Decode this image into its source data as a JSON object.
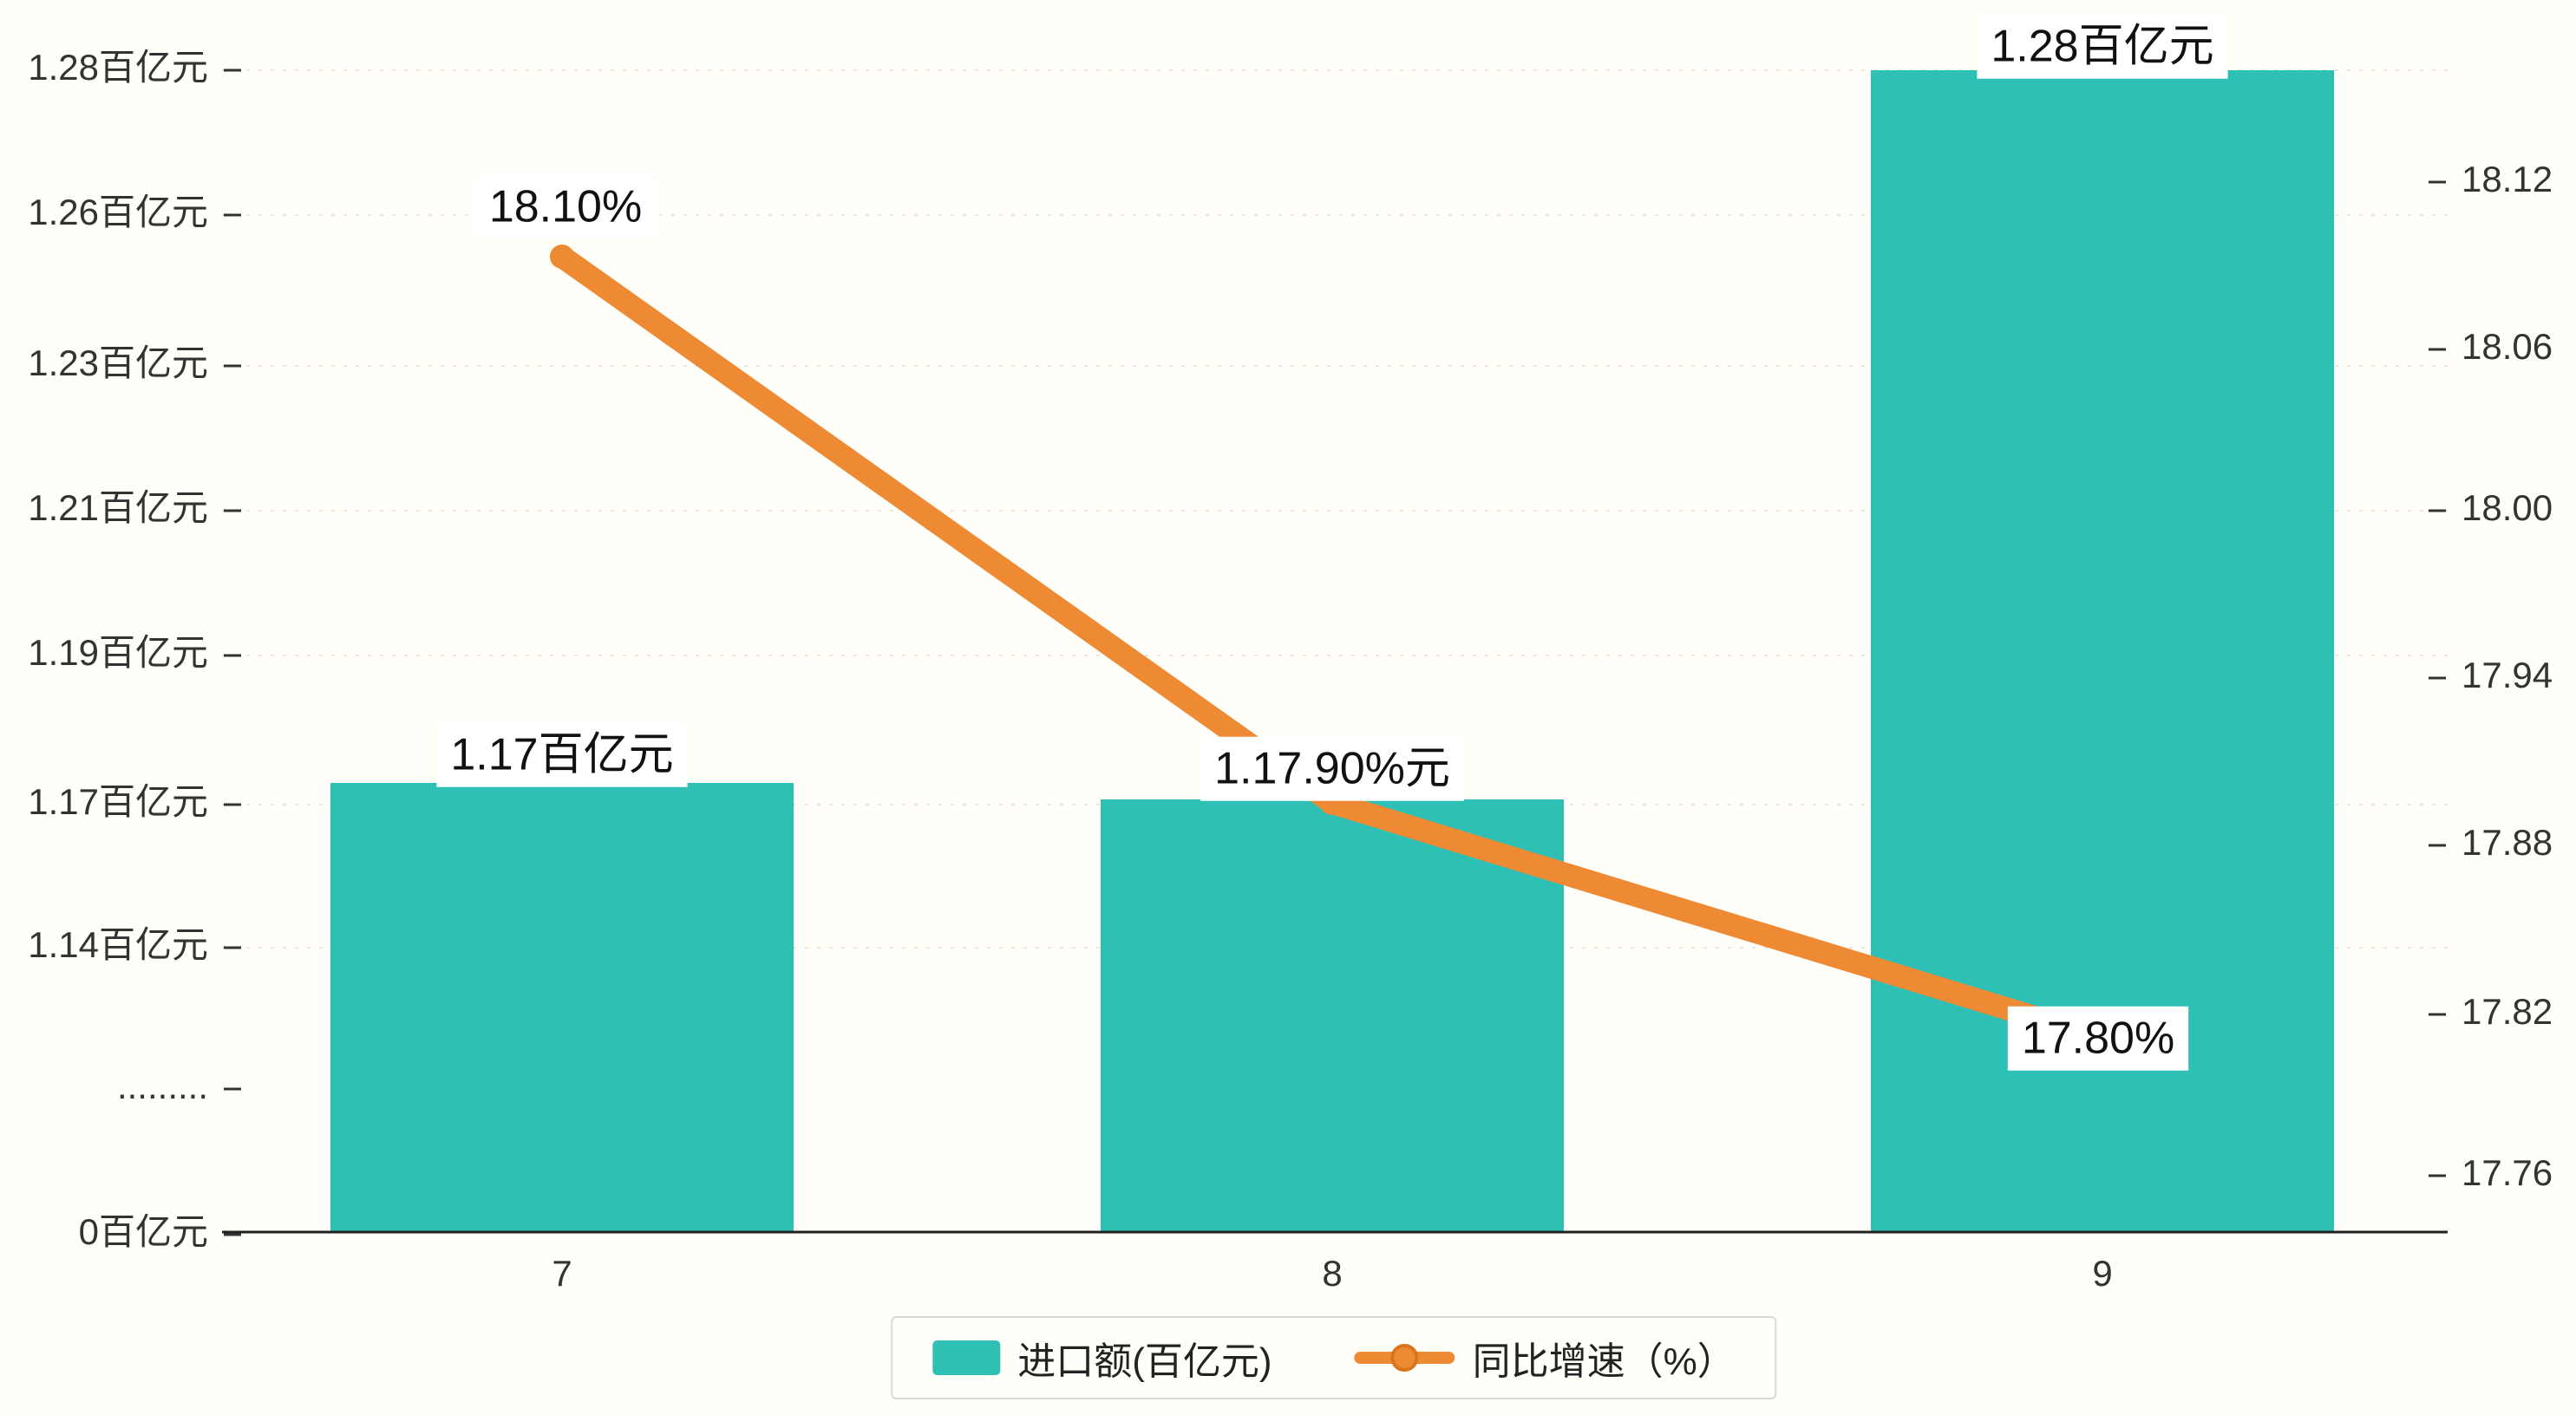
{
  "colors": {
    "background": "#fffef9",
    "bar": "#2ec0b4",
    "line": "#ee8a33",
    "line_marker_ring": "#d9741f",
    "axis": "#333333",
    "grid": "#ece6da",
    "label_text": "#111111",
    "label_box": "#ffffff"
  },
  "chart_data": {
    "type": "bar-line-combo",
    "title": "",
    "categories": [
      "7",
      "8",
      "9"
    ],
    "series": [
      {
        "name": "进口额(百亿元)",
        "type": "bar",
        "values": [
          1.17,
          1.17,
          1.28
        ],
        "unit": "百亿元",
        "data_labels": [
          "1.17百亿元",
          "1.17.90%元",
          "1.28百亿元"
        ]
      },
      {
        "name": "同比增速（%）",
        "type": "line",
        "values": [
          18.1,
          17.9,
          17.8
        ],
        "unit": "%",
        "data_labels": [
          "18.10%",
          "",
          "17.80%"
        ]
      }
    ],
    "left_axis": {
      "ticks": [
        "1.28百亿元",
        "1.26百亿元",
        "1.23百亿元",
        "1.21百亿元",
        "1.19百亿元",
        "1.17百亿元",
        "1.14百亿元",
        ".........",
        "0百亿元"
      ],
      "range_note": "axis break between 0 and 1.14"
    },
    "right_axis": {
      "ticks": [
        "18.12",
        "18.06",
        "18.00",
        "17.94",
        "17.88",
        "17.82",
        "17.76"
      ],
      "range": [
        17.76,
        18.12
      ]
    },
    "grid": "dashed-horizontal",
    "legend_position": "bottom-center"
  },
  "legend": {
    "items": [
      {
        "label": "进口额(百亿元)",
        "marker": "bar-swatch"
      },
      {
        "label": "同比增速（%）",
        "marker": "line-with-dot"
      }
    ]
  }
}
